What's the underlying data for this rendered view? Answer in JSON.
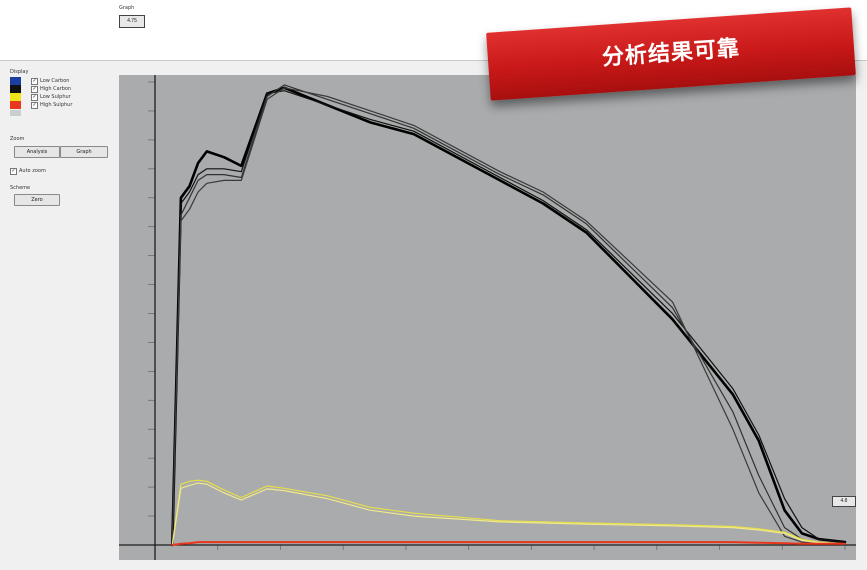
{
  "banner": {
    "text": "分析结果可靠"
  },
  "panel": {
    "display_title": "Display",
    "legend": [
      {
        "label": "Low Carbon",
        "color": "#1a3fa0",
        "checked": true
      },
      {
        "label": "High Carbon",
        "color": "#111111",
        "checked": true
      },
      {
        "label": "Low Sulphur",
        "color": "#f2e21a",
        "checked": true
      },
      {
        "label": "High Sulphur",
        "color": "#e8371c",
        "checked": true
      }
    ],
    "zoom_title": "Zoom",
    "analysis_button": "Analysis",
    "graph_button": "Graph",
    "autozoom_label": "Auto zoom",
    "scheme_title": "Scheme",
    "scheme_button": "Zero"
  },
  "graph": {
    "title": "Graph",
    "zoom_top_label": "4.75",
    "zoom_bottom_label": "4.8",
    "background": "#a9abac"
  },
  "chart_data": {
    "type": "line",
    "x": [
      2,
      3,
      4,
      5,
      6,
      8,
      10,
      13,
      15,
      20,
      25,
      30,
      40,
      45,
      50,
      60,
      67,
      70,
      73,
      75,
      77,
      80
    ],
    "ylim": [
      0,
      8
    ],
    "xlim": [
      0,
      80
    ],
    "series": [
      {
        "color": "#000000",
        "values": [
          0,
          6.0,
          6.2,
          6.6,
          6.8,
          6.7,
          6.55,
          7.8,
          7.9,
          7.6,
          7.3,
          7.1,
          6.3,
          5.9,
          5.4,
          3.9,
          2.6,
          1.8,
          0.6,
          0.2,
          0.1,
          0.05
        ]
      },
      {
        "color": "#111111",
        "values": [
          0,
          5.9,
          6.1,
          6.4,
          6.5,
          6.5,
          6.45,
          7.8,
          7.85,
          7.6,
          7.35,
          7.15,
          6.35,
          5.95,
          5.45,
          4.0,
          2.7,
          1.9,
          0.8,
          0.3,
          0.1,
          0.05
        ]
      },
      {
        "color": "#333333",
        "values": [
          0,
          5.7,
          6.0,
          6.3,
          6.4,
          6.4,
          6.35,
          7.75,
          7.95,
          7.7,
          7.45,
          7.2,
          6.4,
          6.05,
          5.55,
          4.1,
          2.3,
          1.2,
          0.3,
          0.1,
          0.05,
          0.02
        ]
      },
      {
        "color": "#3a3a3a",
        "values": [
          0,
          5.6,
          5.8,
          6.1,
          6.25,
          6.3,
          6.3,
          7.7,
          7.9,
          7.75,
          7.5,
          7.25,
          6.45,
          6.1,
          5.6,
          4.2,
          2.0,
          0.9,
          0.15,
          0.05,
          0.02,
          0.02
        ]
      },
      {
        "color": "#e8e04a",
        "values": [
          0,
          1.05,
          1.1,
          1.12,
          1.1,
          0.95,
          0.82,
          1.02,
          0.98,
          0.85,
          0.65,
          0.55,
          0.42,
          0.4,
          0.38,
          0.35,
          0.32,
          0.28,
          0.22,
          0.1,
          0.05,
          0.02
        ]
      },
      {
        "color": "#f1e989",
        "values": [
          0,
          0.98,
          1.03,
          1.07,
          1.05,
          0.9,
          0.78,
          0.97,
          0.94,
          0.8,
          0.6,
          0.5,
          0.4,
          0.38,
          0.36,
          0.33,
          0.3,
          0.26,
          0.2,
          0.08,
          0.04,
          0.02
        ]
      },
      {
        "color": "#e8371c",
        "values": [
          0,
          0.02,
          0.03,
          0.05,
          0.05,
          0.05,
          0.05,
          0.05,
          0.05,
          0.05,
          0.05,
          0.05,
          0.05,
          0.05,
          0.05,
          0.05,
          0.05,
          0.04,
          0.03,
          0.02,
          0.02,
          0.02
        ]
      }
    ]
  }
}
